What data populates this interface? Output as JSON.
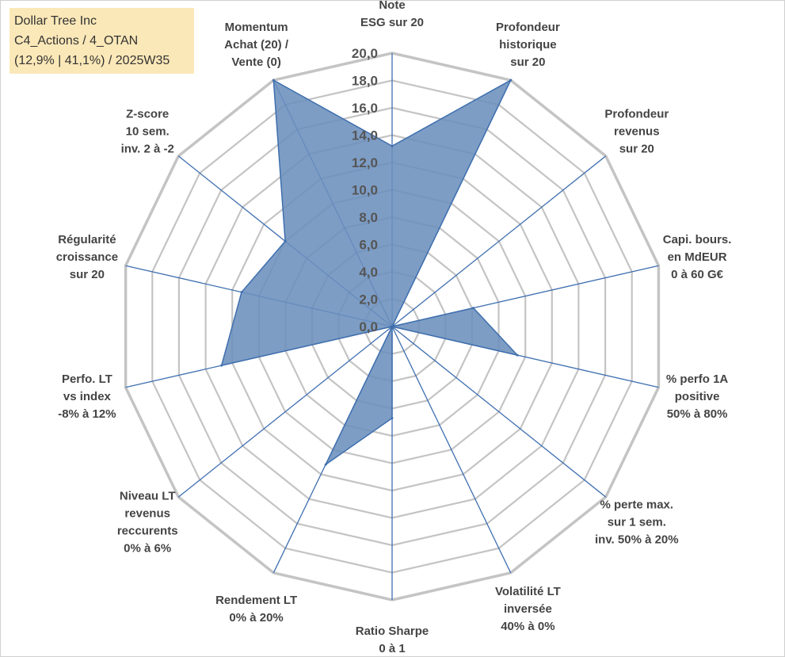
{
  "info_box": {
    "line1": "Dollar Tree Inc",
    "line2": "C4_Actions / 4_OTAN",
    "line3": "(12,9% | 41,1%) / 2025W35"
  },
  "colors": {
    "fill": "#6b8fbd",
    "stroke": "#3f6fae",
    "grid": "#c4c4c4",
    "spoke": "#3f6fb0",
    "info_bg": "#fbe8b8"
  },
  "chart_data": {
    "type": "radar",
    "title": "",
    "rmin": 0,
    "rmax": 20,
    "tick_step": 2,
    "tick_labels": [
      "0,0",
      "2,0",
      "4,0",
      "6,0",
      "8,0",
      "10,0",
      "12,0",
      "14,0",
      "16,0",
      "18,0",
      "20,0"
    ],
    "axes": [
      [
        "Note",
        "ESG sur 20"
      ],
      [
        "Profondeur",
        "historique",
        "sur 20"
      ],
      [
        "Profondeur",
        "revenus",
        "sur 20"
      ],
      [
        "Capi. bours.",
        "en MdEUR",
        "0 à 60 G€"
      ],
      [
        "% perfo 1A",
        "positive",
        "50% à 80%"
      ],
      [
        "% perte max.",
        "sur 1 sem.",
        "inv. 50% à 20%"
      ],
      [
        "Volatilité LT",
        "inversée",
        "40% à 0%"
      ],
      [
        "Ratio Sharpe",
        "0 à 1"
      ],
      [
        "Rendement LT",
        "0% à 20%"
      ],
      [
        "Niveau LT",
        "revenus",
        "reccurents",
        "0% à 6%"
      ],
      [
        "Perfo. LT",
        "vs index",
        "-8% à 12%"
      ],
      [
        "Régularité",
        "croissance",
        "sur 20"
      ],
      [
        "Z-score",
        "10 sem.",
        "inv. 2 à -2"
      ],
      [
        "Momentum",
        "Achat (20) /",
        "Vente (0)"
      ]
    ],
    "series": [
      {
        "values": [
          13.2,
          20.0,
          0.0,
          6.1,
          9.4,
          0.0,
          0.0,
          6.7,
          11.2,
          0.0,
          12.8,
          11.3,
          10.0,
          20.0
        ]
      }
    ],
    "grid": true,
    "legend": "none"
  }
}
